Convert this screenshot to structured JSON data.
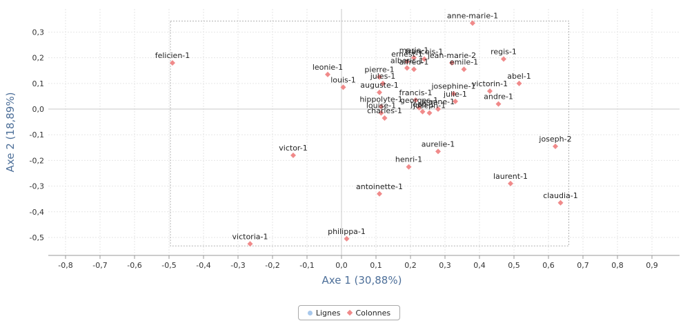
{
  "chart_data": {
    "type": "scatter",
    "xlabel": "Axe 1 (30,88%)",
    "ylabel": "Axe 2 (18,89%)",
    "xlim": [
      -0.85,
      0.98
    ],
    "ylim": [
      -0.57,
      0.39
    ],
    "x_ticks": [
      -0.8,
      -0.7,
      -0.6,
      -0.5,
      -0.4,
      -0.3,
      -0.2,
      -0.1,
      0,
      0.1,
      0.2,
      0.3,
      0.4,
      0.5,
      0.6,
      0.7,
      0.8,
      0.9
    ],
    "x_tick_labels": [
      "-0,8",
      "-0,7",
      "-0,6",
      "-0,5",
      "-0,4",
      "-0,3",
      "-0,2",
      "-0,1",
      "0,0",
      "0,1",
      "0,2",
      "0,3",
      "0,4",
      "0,5",
      "0,6",
      "0,7",
      "0,8",
      "0,9"
    ],
    "y_ticks": [
      0.3,
      0.2,
      0.1,
      0,
      -0.1,
      -0.2,
      -0.3,
      -0.4,
      -0.5
    ],
    "y_tick_labels": [
      "0,3",
      "0,2",
      "0,1",
      "0,0",
      "-0,1",
      "-0,2",
      "-0,3",
      "-0,4",
      "-0,5"
    ],
    "grid": true,
    "legend_position": "bottom-center",
    "series": [
      {
        "name": "Lignes",
        "color": "#a8c8ec",
        "marker": "circle",
        "points": []
      },
      {
        "name": "Colonnes",
        "color": "#f08a8a",
        "marker": "diamond",
        "points": [
          {
            "label": "anne-marie-1",
            "x": 0.38,
            "y": 0.335
          },
          {
            "label": "felicien-1",
            "x": -0.49,
            "y": 0.18
          },
          {
            "label": "regis-1",
            "x": 0.47,
            "y": 0.195
          },
          {
            "label": "marie-1",
            "x": 0.21,
            "y": 0.2
          },
          {
            "label": "ernest-1",
            "x": 0.19,
            "y": 0.185
          },
          {
            "label": "francois-1",
            "x": 0.24,
            "y": 0.195
          },
          {
            "label": "jean-marie-2",
            "x": 0.32,
            "y": 0.18
          },
          {
            "label": "alberic-1",
            "x": 0.19,
            "y": 0.16
          },
          {
            "label": "alfred-1",
            "x": 0.21,
            "y": 0.155
          },
          {
            "label": "emile-1",
            "x": 0.355,
            "y": 0.155
          },
          {
            "label": "leonie-1",
            "x": -0.04,
            "y": 0.135
          },
          {
            "label": "pierre-1",
            "x": 0.11,
            "y": 0.125
          },
          {
            "label": "louis-1",
            "x": 0.005,
            "y": 0.085
          },
          {
            "label": "jules-1",
            "x": 0.12,
            "y": 0.1
          },
          {
            "label": "abel-1",
            "x": 0.515,
            "y": 0.1
          },
          {
            "label": "auguste-1",
            "x": 0.11,
            "y": 0.065
          },
          {
            "label": "josephine-1",
            "x": 0.325,
            "y": 0.06
          },
          {
            "label": "victorin-1",
            "x": 0.43,
            "y": 0.07
          },
          {
            "label": "francis-1",
            "x": 0.215,
            "y": 0.035
          },
          {
            "label": "julie-1",
            "x": 0.33,
            "y": 0.03
          },
          {
            "label": "andre-1",
            "x": 0.455,
            "y": 0.02
          },
          {
            "label": "hippolyte-1",
            "x": 0.115,
            "y": 0.01
          },
          {
            "label": "georges-1",
            "x": 0.225,
            "y": 0.005
          },
          {
            "label": "jeanne-1",
            "x": 0.28,
            "y": 0.0
          },
          {
            "label": "louise-1",
            "x": 0.115,
            "y": -0.015
          },
          {
            "label": "jean-1",
            "x": 0.235,
            "y": -0.01
          },
          {
            "label": "joseph-1",
            "x": 0.255,
            "y": -0.015
          },
          {
            "label": "charles-1",
            "x": 0.125,
            "y": -0.035
          },
          {
            "label": "joseph-2",
            "x": 0.62,
            "y": -0.145
          },
          {
            "label": "aurelie-1",
            "x": 0.28,
            "y": -0.165
          },
          {
            "label": "victor-1",
            "x": -0.14,
            "y": -0.18
          },
          {
            "label": "henri-1",
            "x": 0.195,
            "y": -0.225
          },
          {
            "label": "laurent-1",
            "x": 0.49,
            "y": -0.29
          },
          {
            "label": "antoinette-1",
            "x": 0.11,
            "y": -0.33
          },
          {
            "label": "claudia-1",
            "x": 0.635,
            "y": -0.365
          },
          {
            "label": "philippa-1",
            "x": 0.015,
            "y": -0.505
          },
          {
            "label": "victoria-1",
            "x": -0.265,
            "y": -0.525
          }
        ]
      }
    ]
  },
  "legend": {
    "items": [
      {
        "label": "Lignes",
        "color": "#a8c8ec"
      },
      {
        "label": "Colonnes",
        "color": "#f08a8a"
      }
    ]
  }
}
